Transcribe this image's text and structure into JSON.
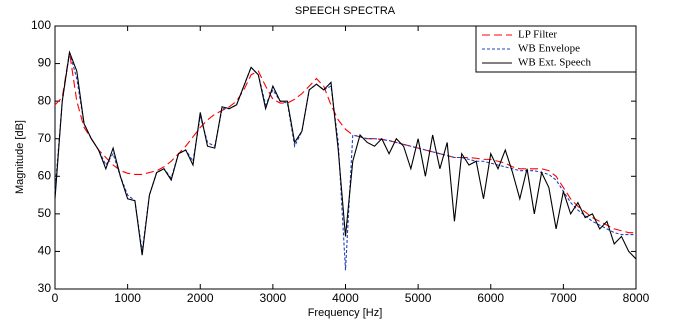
{
  "chart_data": {
    "type": "line",
    "title": "SPEECH SPECTRA",
    "x_label": "Frequency [Hz]",
    "y_label": "Magnitude [dB]",
    "x": [
      0,
      100,
      200,
      300,
      400,
      500,
      600,
      700,
      800,
      900,
      1000,
      1100,
      1200,
      1300,
      1400,
      1500,
      1600,
      1700,
      1800,
      1900,
      2000,
      2100,
      2200,
      2300,
      2400,
      2500,
      2600,
      2700,
      2800,
      2900,
      3000,
      3100,
      3200,
      3300,
      3400,
      3500,
      3600,
      3700,
      3800,
      3900,
      4000,
      4100,
      4200,
      4300,
      4400,
      4500,
      4600,
      4700,
      4800,
      4900,
      5000,
      5100,
      5200,
      5300,
      5400,
      5500,
      5600,
      5700,
      5800,
      5900,
      6000,
      6100,
      6200,
      6300,
      6400,
      6500,
      6600,
      6700,
      6800,
      6900,
      7000,
      7100,
      7200,
      7300,
      7400,
      7500,
      7600,
      7700,
      7800,
      7900,
      8000
    ],
    "series": [
      {
        "name": "LP Filter",
        "color": "#ff0000",
        "dash": "8,4",
        "values": [
          79,
          81,
          93,
          80,
          73,
          70,
          67,
          65,
          63,
          61.5,
          60.8,
          60.5,
          60.5,
          61,
          61.5,
          62.5,
          64,
          66,
          68,
          70.5,
          73,
          75,
          76.5,
          77.5,
          78.5,
          80,
          83,
          87,
          88,
          84,
          80.5,
          79.5,
          79.5,
          80.5,
          82,
          84,
          86,
          84,
          79,
          75,
          72.5,
          71,
          70.5,
          70,
          70,
          69.8,
          69.5,
          69,
          68.5,
          68,
          67.5,
          67,
          66.5,
          66,
          65.5,
          65,
          65,
          65,
          64.8,
          64.5,
          64.5,
          64,
          63.5,
          62.5,
          62,
          62,
          62,
          62,
          61.5,
          60,
          57,
          54,
          52,
          50.5,
          49,
          48,
          47,
          46,
          45.5,
          45,
          45
        ]
      },
      {
        "name": "WB Envelope",
        "color": "#1f3fbf",
        "dash": "3,2",
        "values": [
          56,
          80,
          93,
          86,
          74,
          70,
          67,
          63,
          66,
          60,
          55,
          53.5,
          40,
          55,
          61,
          62,
          59.5,
          66,
          67,
          64,
          76,
          69,
          68,
          78,
          78,
          79,
          84,
          89,
          87,
          79,
          83,
          80,
          79.5,
          68,
          72,
          83,
          84.5,
          83,
          84,
          69,
          35,
          71,
          70.5,
          70,
          70,
          69.8,
          69.5,
          69,
          68.5,
          68,
          67.5,
          67,
          66.5,
          66,
          65.5,
          65,
          65,
          64.5,
          64,
          64,
          63.5,
          63,
          62.5,
          62,
          61.5,
          61.5,
          61.5,
          61,
          60.5,
          59,
          56,
          53,
          51,
          49.5,
          48,
          47,
          46,
          45,
          44.5,
          44.5,
          44.5
        ]
      },
      {
        "name": "WB Ext. Speech",
        "color": "#000000",
        "dash": "none",
        "values": [
          54,
          80,
          93,
          88,
          74,
          70,
          67,
          62,
          67.5,
          60,
          54,
          53.5,
          39,
          55,
          61,
          62,
          59,
          66,
          67,
          63,
          77,
          68,
          67.5,
          78.5,
          78,
          79,
          84,
          89,
          87,
          78,
          84,
          80,
          80,
          69,
          72,
          83,
          84.5,
          83,
          85,
          67,
          44,
          64,
          71,
          69,
          68,
          70,
          66,
          70,
          68,
          62,
          70,
          60,
          71,
          62,
          69,
          48,
          66,
          63,
          64,
          54,
          66,
          62,
          67,
          61,
          54,
          62,
          50,
          61,
          57,
          46,
          56,
          50,
          53,
          49,
          50,
          46,
          48,
          42,
          44,
          40,
          38
        ]
      }
    ],
    "xlim": [
      0,
      8000
    ],
    "ylim": [
      30,
      100
    ],
    "xticks": [
      0,
      1000,
      2000,
      3000,
      4000,
      5000,
      6000,
      7000,
      8000
    ],
    "yticks": [
      30,
      40,
      50,
      60,
      70,
      80,
      90,
      100
    ],
    "grid": false,
    "legend": "upper-right"
  }
}
